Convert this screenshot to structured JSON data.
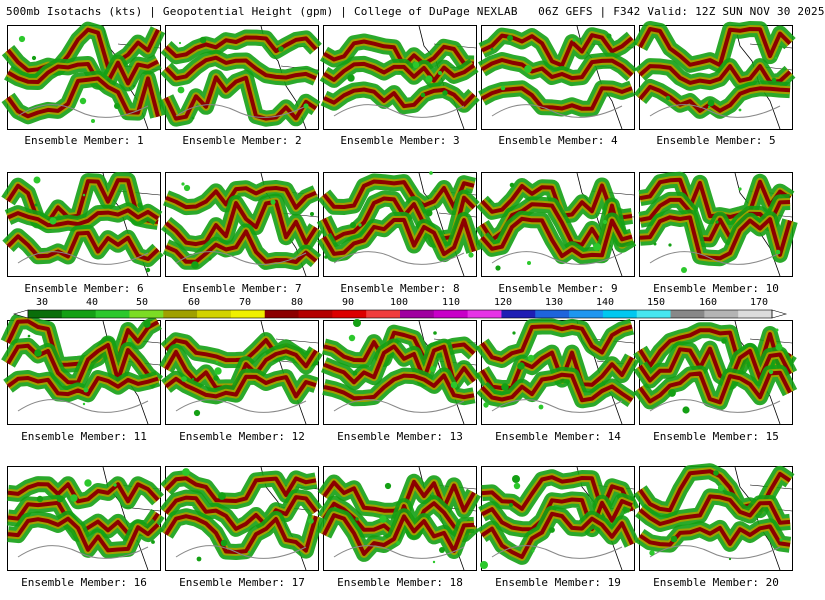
{
  "header": {
    "title": "500mb Isotachs (kts) | Geopotential Height (gpm) | College of DuPage NEXLAB   06Z GEFS | F342 Valid: 12Z SUN NOV 30 2025"
  },
  "panels": [
    {
      "label": "Ensemble Member: 1"
    },
    {
      "label": "Ensemble Member: 2"
    },
    {
      "label": "Ensemble Member: 3"
    },
    {
      "label": "Ensemble Member: 4"
    },
    {
      "label": "Ensemble Member: 5"
    },
    {
      "label": "Ensemble Member: 6"
    },
    {
      "label": "Ensemble Member: 7"
    },
    {
      "label": "Ensemble Member: 8"
    },
    {
      "label": "Ensemble Member: 9"
    },
    {
      "label": "Ensemble Member: 10"
    },
    {
      "label": "Ensemble Member: 11"
    },
    {
      "label": "Ensemble Member: 12"
    },
    {
      "label": "Ensemble Member: 13"
    },
    {
      "label": "Ensemble Member: 14"
    },
    {
      "label": "Ensemble Member: 15"
    },
    {
      "label": "Ensemble Member: 16"
    },
    {
      "label": "Ensemble Member: 17"
    },
    {
      "label": "Ensemble Member: 18"
    },
    {
      "label": "Ensemble Member: 19"
    },
    {
      "label": "Ensemble Member: 20"
    }
  ],
  "legend": {
    "ticks": [
      "30",
      "40",
      "50",
      "60",
      "70",
      "80",
      "90",
      "100",
      "110",
      "120",
      "130",
      "140",
      "150",
      "160",
      "170"
    ],
    "colors": [
      "#0a6e0a",
      "#14a014",
      "#2cc82c",
      "#7cdc24",
      "#a0a000",
      "#d2d200",
      "#f0f000",
      "#8c0000",
      "#b40000",
      "#dc0000",
      "#f03c3c",
      "#a000a0",
      "#c800c8",
      "#e632e6",
      "#1e1eb4",
      "#1e64dc",
      "#1e96f0",
      "#00c8f0",
      "#46e6f0",
      "#888888",
      "#b4b4b4",
      "#dcdcdc"
    ]
  }
}
